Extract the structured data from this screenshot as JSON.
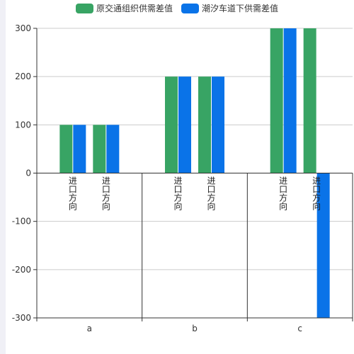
{
  "chart_data": {
    "type": "bar",
    "categories": [
      "a",
      "b",
      "c"
    ],
    "bar_label": "进口方向",
    "series": [
      {
        "name": "原交通组织供需差值",
        "color": "#38a464",
        "values": [
          [
            100,
            100
          ],
          [
            200,
            200
          ],
          [
            300,
            300
          ]
        ]
      },
      {
        "name": "潮汐车道下供需差值",
        "color": "#0a73e8",
        "values": [
          [
            100,
            100
          ],
          [
            200,
            200
          ],
          [
            300,
            -300
          ]
        ]
      }
    ],
    "ylim": [
      -300,
      300
    ],
    "yticks": [
      300,
      200,
      100,
      0,
      -100,
      -200,
      -300
    ],
    "grid": true,
    "legend_position": "top-center"
  }
}
